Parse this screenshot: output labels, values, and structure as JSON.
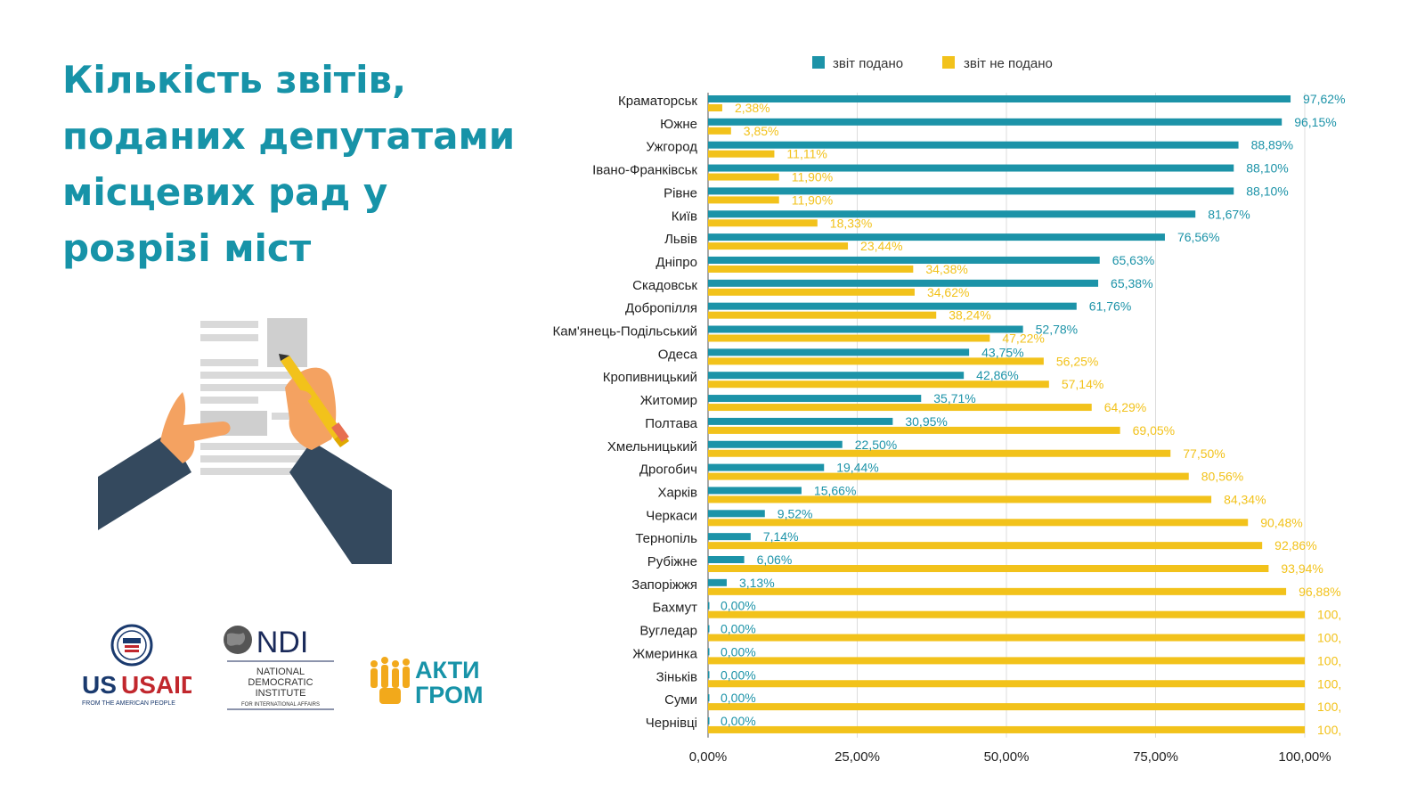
{
  "header": {
    "title_lines": [
      "Кількість звітів,",
      "поданих депутатами",
      "місцевих рад у",
      "розрізі міст"
    ]
  },
  "logos": {
    "usaid": {
      "name": "USAID",
      "tagline": "FROM THE AMERICAN PEOPLE"
    },
    "ndi": {
      "name": "NDI",
      "line1": "NATIONAL",
      "line2": "DEMOCRATIC",
      "line3": "INSTITUTE",
      "line4": "FOR INTERNATIONAL AFFAIRS"
    },
    "akti": {
      "line1": "АКТИ",
      "line2": "ГРОМ"
    }
  },
  "icons": {
    "illustration": "hands-signing-document-icon",
    "usaid": "usaid-seal-icon",
    "ndi": "globe-icon",
    "akti": "people-group-icon"
  },
  "colors": {
    "title": "#1793a8",
    "submitted": "#1c93a8",
    "not_submitted": "#f2c21b"
  },
  "chart_data": {
    "type": "bar",
    "orientation": "horizontal",
    "legend_position": "top",
    "grid": true,
    "xlim": [
      0,
      100
    ],
    "x_ticks": [
      "0,00%",
      "25,00%",
      "50,00%",
      "75,00%",
      "100,00%"
    ],
    "categories": [
      "Краматорськ",
      "Южне",
      "Ужгород",
      "Івано-Франківськ",
      "Рівне",
      "Київ",
      "Львів",
      "Дніпро",
      "Скадовськ",
      "Добропілля",
      "Кам'янець-Подільський",
      "Одеса",
      "Кропивницький",
      "Житомир",
      "Полтава",
      "Хмельницький",
      "Дрогобич",
      "Харків",
      "Черкаси",
      "Тернопіль",
      "Рубіжне",
      "Запоріжжя",
      "Бахмут",
      "Вугледар",
      "Жмеринка",
      "Зіньків",
      "Суми",
      "Чернівці"
    ],
    "series": [
      {
        "name": "звіт подано",
        "values": [
          97.62,
          96.15,
          88.89,
          88.1,
          88.1,
          81.67,
          76.56,
          65.63,
          65.38,
          61.76,
          52.78,
          43.75,
          42.86,
          35.71,
          30.95,
          22.5,
          19.44,
          15.66,
          9.52,
          7.14,
          6.06,
          3.13,
          0,
          0,
          0,
          0,
          0,
          0
        ],
        "labels": [
          "97,62%",
          "96,15%",
          "88,89%",
          "88,10%",
          "88,10%",
          "81,67%",
          "76,56%",
          "65,63%",
          "65,38%",
          "61,76%",
          "52,78%",
          "43,75%",
          "42,86%",
          "35,71%",
          "30,95%",
          "22,50%",
          "19,44%",
          "15,66%",
          "9,52%",
          "7,14%",
          "6,06%",
          "3,13%",
          "0,00%",
          "0,00%",
          "0,00%",
          "0,00%",
          "0,00%",
          "0,00%"
        ]
      },
      {
        "name": "звіт не подано",
        "values": [
          2.38,
          3.85,
          11.11,
          11.9,
          11.9,
          18.33,
          23.44,
          34.38,
          34.62,
          38.24,
          47.22,
          56.25,
          57.14,
          64.29,
          69.05,
          77.5,
          80.56,
          84.34,
          90.48,
          92.86,
          93.94,
          96.88,
          100,
          100,
          100,
          100,
          100,
          100
        ],
        "labels": [
          "2,38%",
          "3,85%",
          "11,11%",
          "11,90%",
          "11,90%",
          "18,33%",
          "23,44%",
          "34,38%",
          "34,62%",
          "38,24%",
          "47,22%",
          "56,25%",
          "57,14%",
          "64,29%",
          "69,05%",
          "77,50%",
          "80,56%",
          "84,34%",
          "90,48%",
          "92,86%",
          "93,94%",
          "96,88%",
          "100,",
          "100,",
          "100,",
          "100,",
          "100,",
          "100,"
        ]
      }
    ]
  }
}
